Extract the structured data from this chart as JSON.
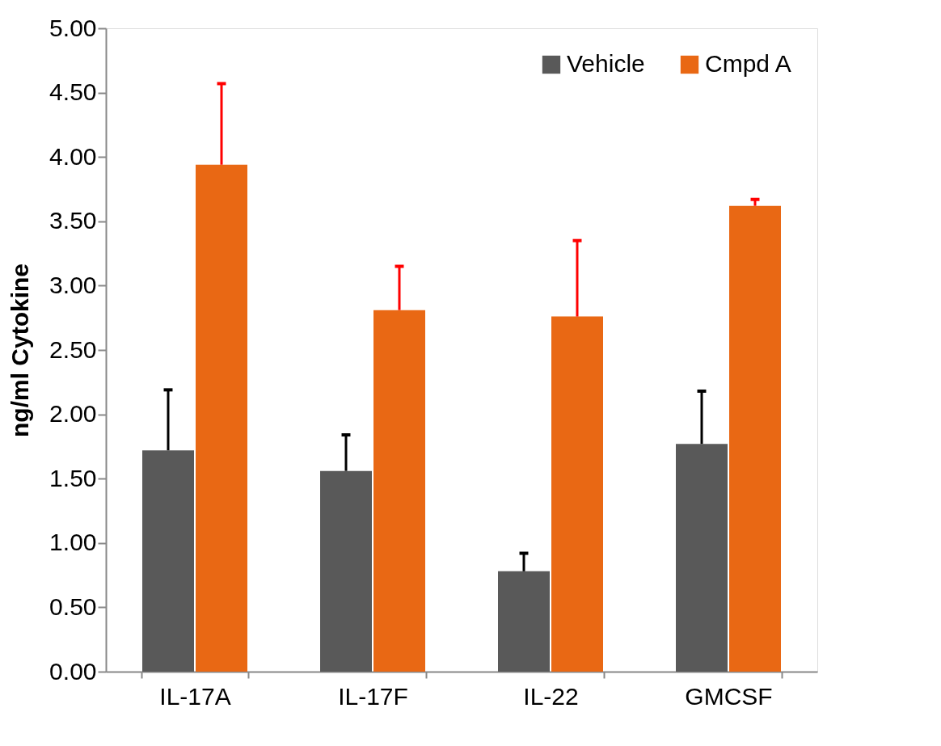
{
  "chart_data": {
    "type": "bar",
    "ylabel": "ng/ml Cytokine",
    "categories": [
      "IL-17A",
      "IL-17F",
      "IL-22",
      "GMCSF"
    ],
    "series": [
      {
        "name": "Vehicle",
        "color": "#595959",
        "values": [
          1.72,
          1.56,
          0.78,
          1.77
        ],
        "errors": [
          [
            1.72,
            2.19
          ],
          [
            1.56,
            1.84
          ],
          [
            0.78,
            0.92
          ],
          [
            1.77,
            2.18
          ]
        ]
      },
      {
        "name": "Cmpd A",
        "color": "#e96814",
        "values": [
          3.94,
          2.81,
          2.76,
          3.62
        ],
        "errors": [
          [
            3.94,
            4.57
          ],
          [
            2.81,
            3.15
          ],
          [
            2.76,
            3.35
          ],
          [
            3.62,
            3.67
          ]
        ]
      }
    ],
    "ylim": [
      0,
      5
    ],
    "yticks": [
      {
        "value": 0,
        "label": "0.00"
      },
      {
        "value": 0.5,
        "label": "0.50"
      },
      {
        "value": 1,
        "label": "1.00"
      },
      {
        "value": 1.5,
        "label": "1.50"
      },
      {
        "value": 2,
        "label": "2.00"
      },
      {
        "value": 2.5,
        "label": "2.50"
      },
      {
        "value": 3,
        "label": "3.00"
      },
      {
        "value": 3.5,
        "label": "3.50"
      },
      {
        "value": 4,
        "label": "4.00"
      },
      {
        "value": 4.5,
        "label": "4.50"
      },
      {
        "value": 5,
        "label": "5.00"
      }
    ],
    "grid": false,
    "legend": "top right"
  }
}
